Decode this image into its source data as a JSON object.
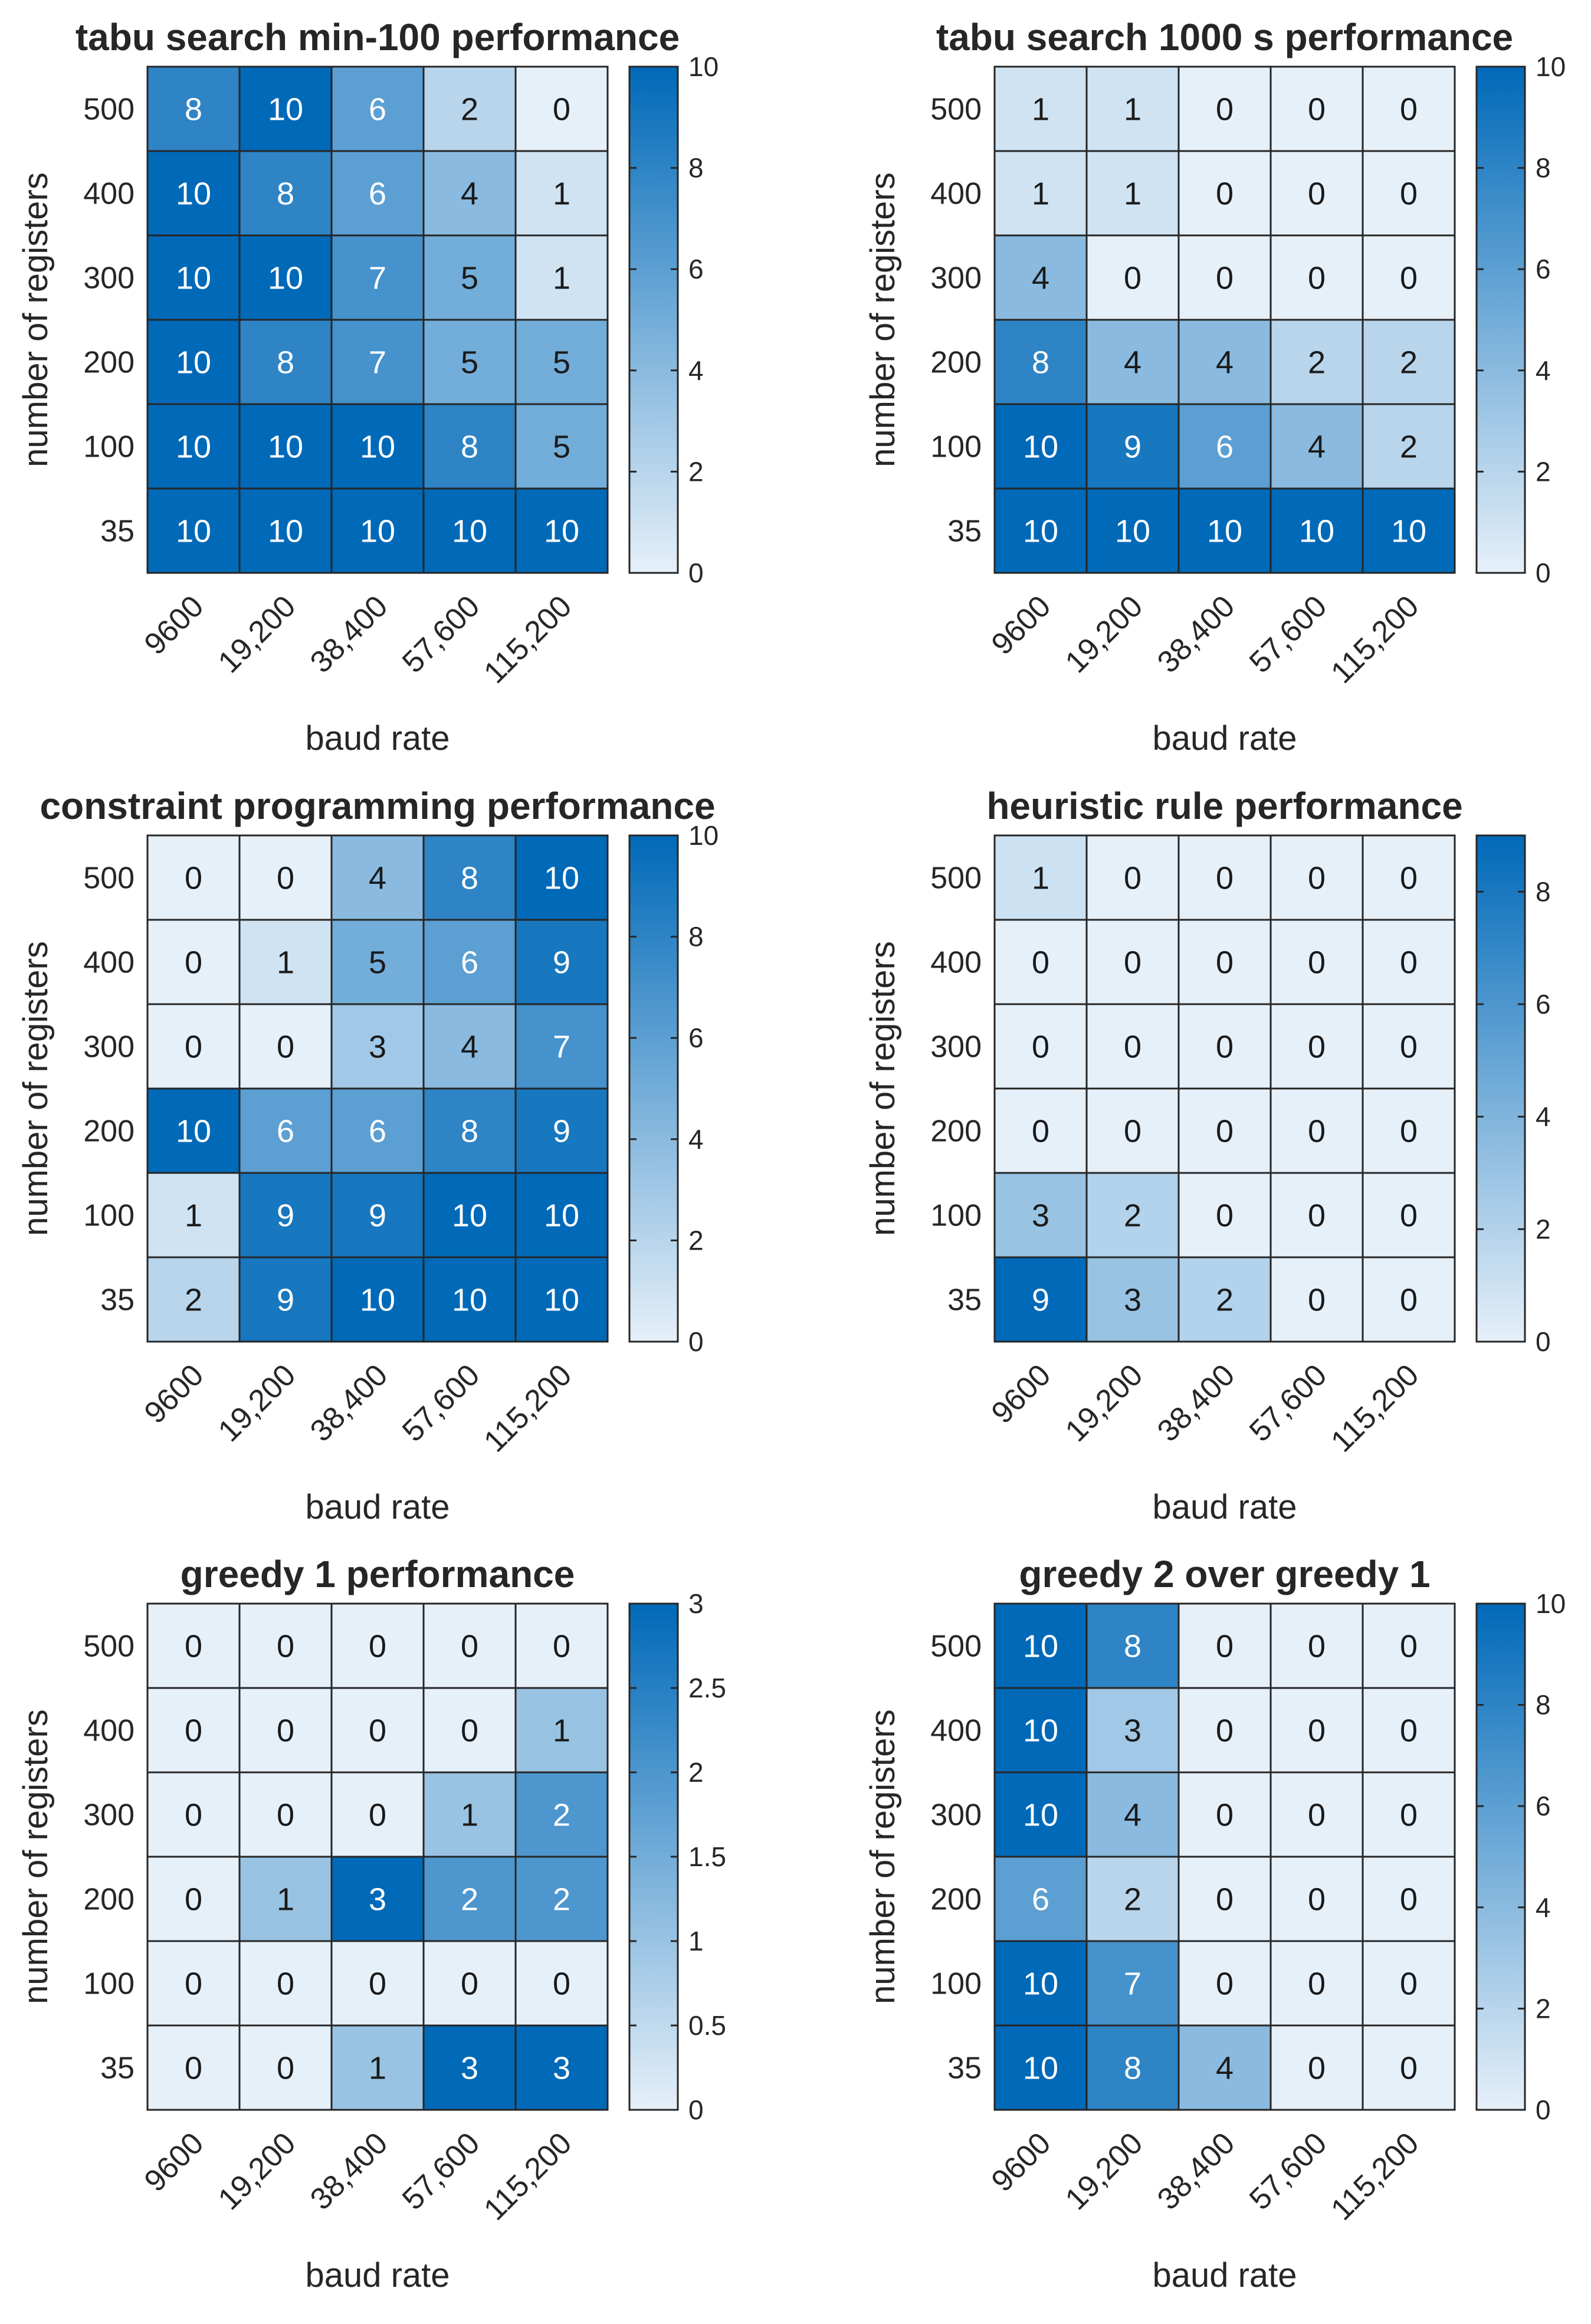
{
  "chart_data": [
    {
      "type": "heatmap",
      "title": "tabu search min-100 performance",
      "xlabel": "baud rate",
      "ylabel": "number of registers",
      "x_categories": [
        "9600",
        "19,200",
        "38,400",
        "57,600",
        "115,200"
      ],
      "y_categories": [
        "500",
        "400",
        "300",
        "200",
        "100",
        "35"
      ],
      "values": [
        [
          8,
          10,
          6,
          2,
          0
        ],
        [
          10,
          8,
          6,
          4,
          1
        ],
        [
          10,
          10,
          7,
          5,
          1
        ],
        [
          10,
          8,
          7,
          5,
          5
        ],
        [
          10,
          10,
          10,
          8,
          5
        ],
        [
          10,
          10,
          10,
          10,
          10
        ]
      ],
      "clim": [
        0,
        10
      ],
      "colorbar_ticks": [
        "0",
        "2",
        "4",
        "6",
        "8",
        "10"
      ],
      "colormap": {
        "low": "#e6f0f9",
        "high": "#0069b8"
      }
    },
    {
      "type": "heatmap",
      "title": "tabu search 1000 s performance",
      "xlabel": "baud rate",
      "ylabel": "number of registers",
      "x_categories": [
        "9600",
        "19,200",
        "38,400",
        "57,600",
        "115,200"
      ],
      "y_categories": [
        "500",
        "400",
        "300",
        "200",
        "100",
        "35"
      ],
      "values": [
        [
          1,
          1,
          0,
          0,
          0
        ],
        [
          1,
          1,
          0,
          0,
          0
        ],
        [
          4,
          0,
          0,
          0,
          0
        ],
        [
          8,
          4,
          4,
          2,
          2
        ],
        [
          10,
          9,
          6,
          4,
          2
        ],
        [
          10,
          10,
          10,
          10,
          10
        ]
      ],
      "clim": [
        0,
        10
      ],
      "colorbar_ticks": [
        "0",
        "2",
        "4",
        "6",
        "8",
        "10"
      ],
      "colormap": {
        "low": "#e6f0f9",
        "high": "#0069b8"
      }
    },
    {
      "type": "heatmap",
      "title": "constraint programming performance",
      "xlabel": "baud rate",
      "ylabel": "number of registers",
      "x_categories": [
        "9600",
        "19,200",
        "38,400",
        "57,600",
        "115,200"
      ],
      "y_categories": [
        "500",
        "400",
        "300",
        "200",
        "100",
        "35"
      ],
      "values": [
        [
          0,
          0,
          4,
          8,
          10
        ],
        [
          0,
          1,
          5,
          6,
          9
        ],
        [
          0,
          0,
          3,
          4,
          7
        ],
        [
          10,
          6,
          6,
          8,
          9
        ],
        [
          1,
          9,
          9,
          10,
          10
        ],
        [
          2,
          9,
          10,
          10,
          10
        ]
      ],
      "clim": [
        0,
        10
      ],
      "colorbar_ticks": [
        "0",
        "2",
        "4",
        "6",
        "8",
        "10"
      ],
      "colormap": {
        "low": "#e6f0f9",
        "high": "#0069b8"
      }
    },
    {
      "type": "heatmap",
      "title": "heuristic rule performance",
      "xlabel": "baud rate",
      "ylabel": "number of registers",
      "x_categories": [
        "9600",
        "19,200",
        "38,400",
        "57,600",
        "115,200"
      ],
      "y_categories": [
        "500",
        "400",
        "300",
        "200",
        "100",
        "35"
      ],
      "values": [
        [
          1,
          0,
          0,
          0,
          0
        ],
        [
          0,
          0,
          0,
          0,
          0
        ],
        [
          0,
          0,
          0,
          0,
          0
        ],
        [
          0,
          0,
          0,
          0,
          0
        ],
        [
          3,
          2,
          0,
          0,
          0
        ],
        [
          9,
          3,
          2,
          0,
          0
        ]
      ],
      "clim": [
        0,
        9
      ],
      "colorbar_ticks": [
        "0",
        "2",
        "4",
        "6",
        "8"
      ],
      "colormap": {
        "low": "#e6f0f9",
        "high": "#0069b8"
      }
    },
    {
      "type": "heatmap",
      "title": "greedy 1 performance",
      "xlabel": "baud rate",
      "ylabel": "number of registers",
      "x_categories": [
        "9600",
        "19,200",
        "38,400",
        "57,600",
        "115,200"
      ],
      "y_categories": [
        "500",
        "400",
        "300",
        "200",
        "100",
        "35"
      ],
      "values": [
        [
          0,
          0,
          0,
          0,
          0
        ],
        [
          0,
          0,
          0,
          0,
          1
        ],
        [
          0,
          0,
          0,
          1,
          2
        ],
        [
          0,
          1,
          3,
          2,
          2
        ],
        [
          0,
          0,
          0,
          0,
          0
        ],
        [
          0,
          0,
          1,
          3,
          3
        ]
      ],
      "clim": [
        0,
        3
      ],
      "colorbar_ticks": [
        "0",
        "0.5",
        "1",
        "1.5",
        "2",
        "2.5",
        "3"
      ],
      "colormap": {
        "low": "#e6f0f9",
        "high": "#0069b8"
      }
    },
    {
      "type": "heatmap",
      "title": "greedy 2 over greedy 1",
      "xlabel": "baud rate",
      "ylabel": "number of registers",
      "x_categories": [
        "9600",
        "19,200",
        "38,400",
        "57,600",
        "115,200"
      ],
      "y_categories": [
        "500",
        "400",
        "300",
        "200",
        "100",
        "35"
      ],
      "values": [
        [
          10,
          8,
          0,
          0,
          0
        ],
        [
          10,
          3,
          0,
          0,
          0
        ],
        [
          10,
          4,
          0,
          0,
          0
        ],
        [
          6,
          2,
          0,
          0,
          0
        ],
        [
          10,
          7,
          0,
          0,
          0
        ],
        [
          10,
          8,
          4,
          0,
          0
        ]
      ],
      "clim": [
        0,
        10
      ],
      "colorbar_ticks": [
        "0",
        "2",
        "4",
        "6",
        "8",
        "10"
      ],
      "colormap": {
        "low": "#e6f0f9",
        "high": "#0069b8"
      }
    }
  ]
}
